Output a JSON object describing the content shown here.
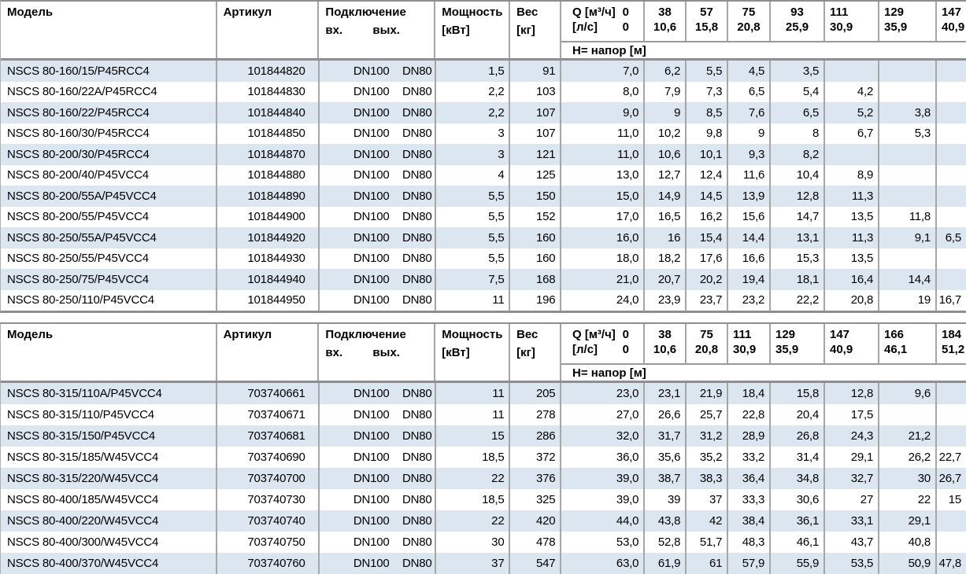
{
  "colors": {
    "stripe": "#dce6f0",
    "border": "#a6a6a6",
    "border_strong": "#8e8e8e",
    "text": "#000000",
    "background": "#ffffff"
  },
  "tables": [
    {
      "header": {
        "model": "Модель",
        "article": "Артикул",
        "connection": "Подключение",
        "conn_in": "вх.",
        "conn_out": "вых.",
        "power": "Мощность",
        "power_unit": "[кВт]",
        "weight": "Вес",
        "weight_unit": "[кг]",
        "q_line1_label": "Q [м³/ч]",
        "q_line1_value": "0",
        "q_line2_label": "[л/с]",
        "q_line2_value": "0",
        "q_cols": [
          {
            "m3h": "38",
            "ls": "10,6"
          },
          {
            "m3h": "57",
            "ls": "15,8"
          },
          {
            "m3h": "75",
            "ls": "20,8"
          },
          {
            "m3h": "93",
            "ls": "25,9"
          },
          {
            "m3h": "111",
            "ls": "30,9"
          },
          {
            "m3h": "129",
            "ls": "35,9"
          },
          {
            "m3h": "147",
            "ls": "40,9"
          }
        ],
        "head_row_label": "H= напор [м]"
      },
      "rows": [
        {
          "model": "NSCS 80-160/15/P45RCC4",
          "article": "101844820",
          "conn_in": "DN100",
          "conn_out": "DN80",
          "power": "1,5",
          "weight": "91",
          "h": [
            "7,0",
            "6,2",
            "5,5",
            "4,5",
            "3,5",
            "",
            "",
            ""
          ]
        },
        {
          "model": "NSCS 80-160/22A/P45RCC4",
          "article": "101844830",
          "conn_in": "DN100",
          "conn_out": "DN80",
          "power": "2,2",
          "weight": "103",
          "h": [
            "8,0",
            "7,9",
            "7,3",
            "6,5",
            "5,4",
            "4,2",
            "",
            ""
          ]
        },
        {
          "model": "NSCS 80-160/22/P45RCC4",
          "article": "101844840",
          "conn_in": "DN100",
          "conn_out": "DN80",
          "power": "2,2",
          "weight": "107",
          "h": [
            "9,0",
            "9",
            "8,5",
            "7,6",
            "6,5",
            "5,2",
            "3,8",
            ""
          ]
        },
        {
          "model": "NSCS 80-160/30/P45RCC4",
          "article": "101844850",
          "conn_in": "DN100",
          "conn_out": "DN80",
          "power": "3",
          "weight": "107",
          "h": [
            "11,0",
            "10,2",
            "9,8",
            "9",
            "8",
            "6,7",
            "5,3",
            ""
          ]
        },
        {
          "model": "NSCS 80-200/30/P45RCC4",
          "article": "101844870",
          "conn_in": "DN100",
          "conn_out": "DN80",
          "power": "3",
          "weight": "121",
          "h": [
            "11,0",
            "10,6",
            "10,1",
            "9,3",
            "8,2",
            "",
            "",
            ""
          ]
        },
        {
          "model": "NSCS 80-200/40/P45VCC4",
          "article": "101844880",
          "conn_in": "DN100",
          "conn_out": "DN80",
          "power": "4",
          "weight": "125",
          "h": [
            "13,0",
            "12,7",
            "12,4",
            "11,6",
            "10,4",
            "8,9",
            "",
            ""
          ]
        },
        {
          "model": "NSCS 80-200/55A/P45VCC4",
          "article": "101844890",
          "conn_in": "DN100",
          "conn_out": "DN80",
          "power": "5,5",
          "weight": "150",
          "h": [
            "15,0",
            "14,9",
            "14,5",
            "13,9",
            "12,8",
            "11,3",
            "",
            ""
          ]
        },
        {
          "model": "NSCS 80-200/55/P45VCC4",
          "article": "101844900",
          "conn_in": "DN100",
          "conn_out": "DN80",
          "power": "5,5",
          "weight": "152",
          "h": [
            "17,0",
            "16,5",
            "16,2",
            "15,6",
            "14,7",
            "13,5",
            "11,8",
            ""
          ]
        },
        {
          "model": "NSCS 80-250/55A/P45VCC4",
          "article": "101844920",
          "conn_in": "DN100",
          "conn_out": "DN80",
          "power": "5,5",
          "weight": "160",
          "h": [
            "16,0",
            "16",
            "15,4",
            "14,4",
            "13,1",
            "11,3",
            "9,1",
            "6,5"
          ]
        },
        {
          "model": "NSCS 80-250/55/P45VCC4",
          "article": "101844930",
          "conn_in": "DN100",
          "conn_out": "DN80",
          "power": "5,5",
          "weight": "160",
          "h": [
            "18,0",
            "18,2",
            "17,6",
            "16,6",
            "15,3",
            "13,5",
            "",
            ""
          ]
        },
        {
          "model": "NSCS 80-250/75/P45VCC4",
          "article": "101844940",
          "conn_in": "DN100",
          "conn_out": "DN80",
          "power": "7,5",
          "weight": "168",
          "h": [
            "21,0",
            "20,7",
            "20,2",
            "19,4",
            "18,1",
            "16,4",
            "14,4",
            ""
          ]
        },
        {
          "model": "NSCS 80-250/110/P45VCC4",
          "article": "101844950",
          "conn_in": "DN100",
          "conn_out": "DN80",
          "power": "11",
          "weight": "196",
          "h": [
            "24,0",
            "23,9",
            "23,7",
            "23,2",
            "22,2",
            "20,8",
            "19",
            "16,7"
          ]
        }
      ]
    },
    {
      "header": {
        "model": "Модель",
        "article": "Артикул",
        "connection": "Подключение",
        "conn_in": "вх.",
        "conn_out": "вых.",
        "power": "Мощность",
        "power_unit": "[кВт]",
        "weight": "Вес",
        "weight_unit": "[кг]",
        "q_line1_label": "Q [м³/ч]",
        "q_line1_value": "0",
        "q_line2_label": "[л/с]",
        "q_line2_value": "0",
        "q_cols": [
          {
            "m3h": "38",
            "ls": "10,6"
          },
          {
            "m3h": "75",
            "ls": "20,8"
          },
          {
            "m3h": "111",
            "ls": "30,9"
          },
          {
            "m3h": "129",
            "ls": "35,9"
          },
          {
            "m3h": "147",
            "ls": "40,9"
          },
          {
            "m3h": "166",
            "ls": "46,1"
          },
          {
            "m3h": "184",
            "ls": "51,2"
          }
        ],
        "head_row_label": "H= напор [м]"
      },
      "rows": [
        {
          "model": "NSCS 80-315/110A/P45VCC4",
          "article": "703740661",
          "conn_in": "DN100",
          "conn_out": "DN80",
          "power": "11",
          "weight": "205",
          "h": [
            "23,0",
            "23,1",
            "21,9",
            "18,4",
            "15,8",
            "12,8",
            "9,6",
            ""
          ]
        },
        {
          "model": "NSCS 80-315/110/P45VCC4",
          "article": "703740671",
          "conn_in": "DN100",
          "conn_out": "DN80",
          "power": "11",
          "weight": "278",
          "h": [
            "27,0",
            "26,6",
            "25,7",
            "22,8",
            "20,4",
            "17,5",
            "",
            ""
          ]
        },
        {
          "model": "NSCS 80-315/150/P45VCC4",
          "article": "703740681",
          "conn_in": "DN100",
          "conn_out": "DN80",
          "power": "15",
          "weight": "286",
          "h": [
            "32,0",
            "31,7",
            "31,2",
            "28,9",
            "26,8",
            "24,3",
            "21,2",
            ""
          ]
        },
        {
          "model": "NSCS 80-315/185/W45VCC4",
          "article": "703740690",
          "conn_in": "DN100",
          "conn_out": "DN80",
          "power": "18,5",
          "weight": "372",
          "h": [
            "36,0",
            "35,6",
            "35,2",
            "33,2",
            "31,4",
            "29,1",
            "26,2",
            "22,7"
          ]
        },
        {
          "model": "NSCS 80-315/220/W45VCC4",
          "article": "703740700",
          "conn_in": "DN100",
          "conn_out": "DN80",
          "power": "22",
          "weight": "376",
          "h": [
            "39,0",
            "38,7",
            "38,3",
            "36,4",
            "34,8",
            "32,7",
            "30",
            "26,7"
          ]
        },
        {
          "model": "NSCS 80-400/185/W45VCC4",
          "article": "703740730",
          "conn_in": "DN100",
          "conn_out": "DN80",
          "power": "18,5",
          "weight": "325",
          "h": [
            "39,0",
            "39",
            "37",
            "33,3",
            "30,6",
            "27",
            "22",
            "15"
          ]
        },
        {
          "model": "NSCS 80-400/220/W45VCC4",
          "article": "703740740",
          "conn_in": "DN100",
          "conn_out": "DN80",
          "power": "22",
          "weight": "420",
          "h": [
            "44,0",
            "43,8",
            "42",
            "38,4",
            "36,1",
            "33,1",
            "29,1",
            ""
          ]
        },
        {
          "model": "NSCS 80-400/300/W45VCC4",
          "article": "703740750",
          "conn_in": "DN100",
          "conn_out": "DN80",
          "power": "30",
          "weight": "478",
          "h": [
            "53,0",
            "52,8",
            "51,7",
            "48,3",
            "46,1",
            "43,7",
            "40,8",
            ""
          ]
        },
        {
          "model": "NSCS 80-400/370/W45VCC4",
          "article": "703740760",
          "conn_in": "DN100",
          "conn_out": "DN80",
          "power": "37",
          "weight": "547",
          "h": [
            "63,0",
            "61,9",
            "61",
            "57,9",
            "55,9",
            "53,5",
            "50,9",
            "47,8"
          ]
        }
      ]
    }
  ]
}
